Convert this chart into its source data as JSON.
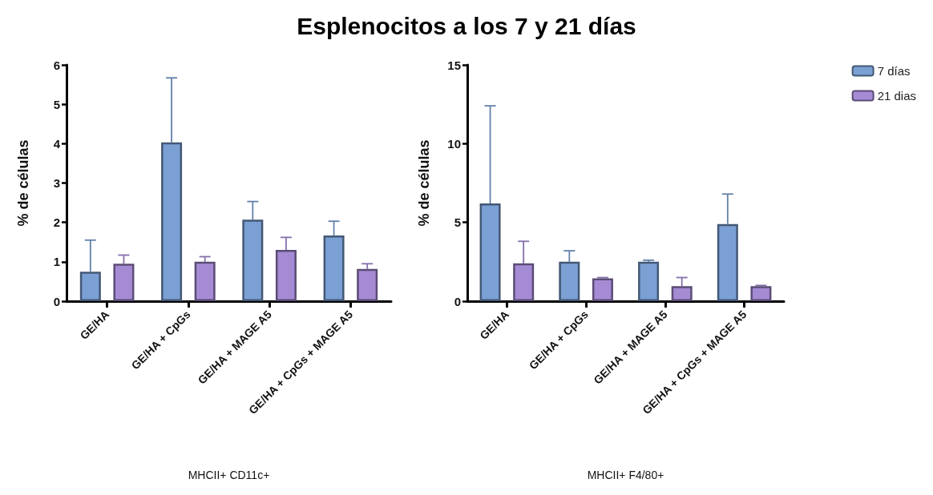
{
  "chart_data": [
    {
      "type": "bar",
      "title": "Esplenocitos a los 7 y 21 días",
      "xlabel": "MHCII+ CD11c+",
      "ylabel": "% de células",
      "categories": [
        "GE/HA",
        "GE/HA + CpGs",
        "GE/HA + MAGE A5",
        "GE/HA + CpGs + MAGE A5"
      ],
      "series": [
        {
          "color": "#7ba0d4",
          "values": [
            0.75,
            4.03,
            2.07,
            1.67
          ],
          "errors": [
            [
              0.75,
              1.55
            ],
            [
              4.03,
              5.67
            ],
            [
              2.07,
              2.53
            ],
            [
              1.67,
              2.03
            ]
          ]
        },
        {
          "color": "#a58bd4",
          "values": [
            0.95,
            1.0,
            1.3,
            0.82
          ],
          "errors": [
            [
              0.95,
              1.17
            ],
            [
              1.0,
              1.13
            ],
            [
              1.3,
              1.62
            ],
            [
              0.82,
              0.95
            ]
          ]
        }
      ],
      "ylim": [
        0,
        6
      ],
      "yticks": [
        0,
        1,
        2,
        3,
        4,
        5,
        6
      ],
      "grid": false,
      "legend": false
    },
    {
      "type": "bar",
      "xlabel": "MHCII+ F4/80+",
      "ylabel": "% de células",
      "categories": [
        "GE/HA",
        "GE/HA + CpGs",
        "GE/HA + MAGE A5",
        "GE/HA + CpGs + MAGE A5"
      ],
      "series": [
        {
          "name": "7 días",
          "color": "#7ba0d4",
          "values": [
            6.2,
            2.5,
            2.5,
            4.9
          ],
          "errors": [
            [
              6.2,
              12.4
            ],
            [
              2.5,
              3.2
            ],
            [
              2.5,
              2.6
            ],
            [
              4.9,
              6.8
            ]
          ]
        },
        {
          "name": "21 dias",
          "color": "#a58bd4",
          "values": [
            2.4,
            1.45,
            0.95,
            0.95
          ],
          "errors": [
            [
              2.4,
              3.8
            ],
            [
              1.45,
              1.5
            ],
            [
              0.95,
              1.5
            ],
            [
              0.95,
              1.0
            ]
          ]
        }
      ],
      "ylim": [
        0,
        15
      ],
      "yticks": [
        0,
        5,
        10,
        15
      ],
      "grid": false,
      "legend": "right"
    }
  ]
}
